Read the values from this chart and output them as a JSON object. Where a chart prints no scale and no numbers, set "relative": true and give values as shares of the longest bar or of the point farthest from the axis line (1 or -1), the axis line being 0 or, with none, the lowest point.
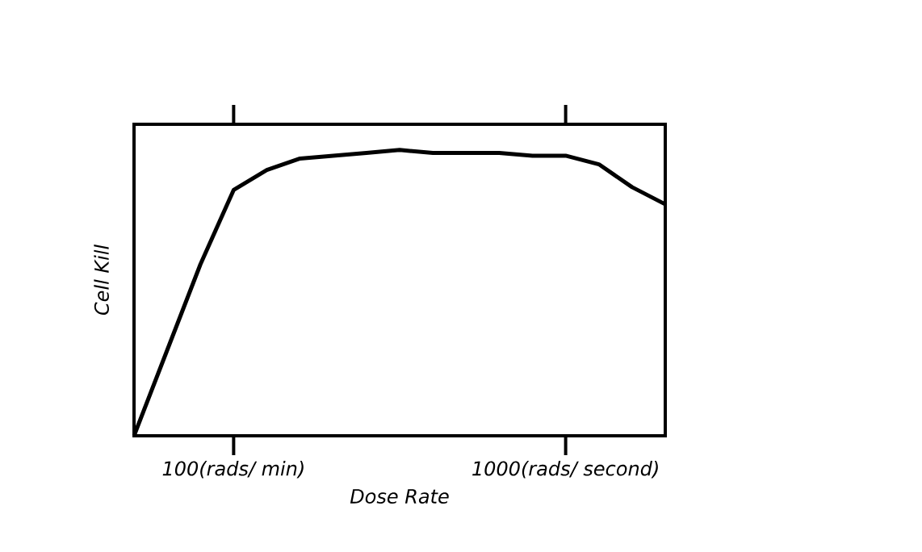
{
  "chart_data": {
    "type": "line",
    "relative": true,
    "xlabel": "Dose Rate",
    "ylabel": "Cell Kill",
    "categories": [
      null,
      null,
      null,
      "100(rads/ min)",
      null,
      null,
      null,
      null,
      null,
      null,
      null,
      null,
      null,
      "1000(rads/ second)",
      null,
      null,
      null
    ],
    "color": "#000000",
    "values": [
      0,
      0.3,
      0.6,
      0.86,
      0.93,
      0.97,
      0.98,
      0.99,
      1,
      0.99,
      0.99,
      0.99,
      0.98,
      0.98,
      0.95,
      0.87,
      0.81
    ]
  }
}
